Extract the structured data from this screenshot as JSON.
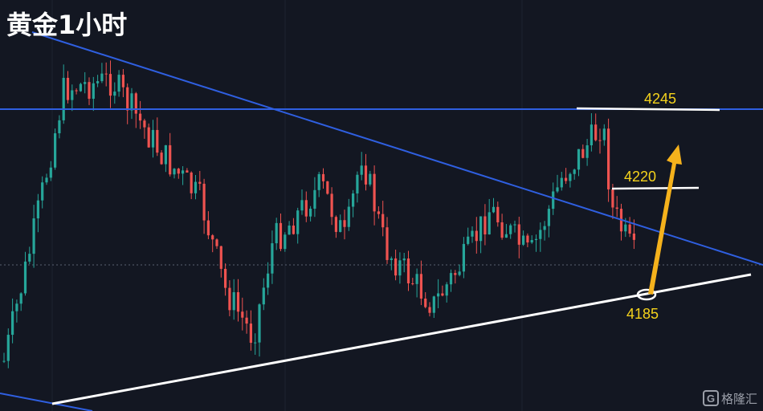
{
  "header": {
    "title": "黄金1小时"
  },
  "annotations": [
    {
      "label": "4245"
    },
    {
      "label": "4220"
    },
    {
      "label": "4185"
    }
  ],
  "watermark": "格隆汇"
}
